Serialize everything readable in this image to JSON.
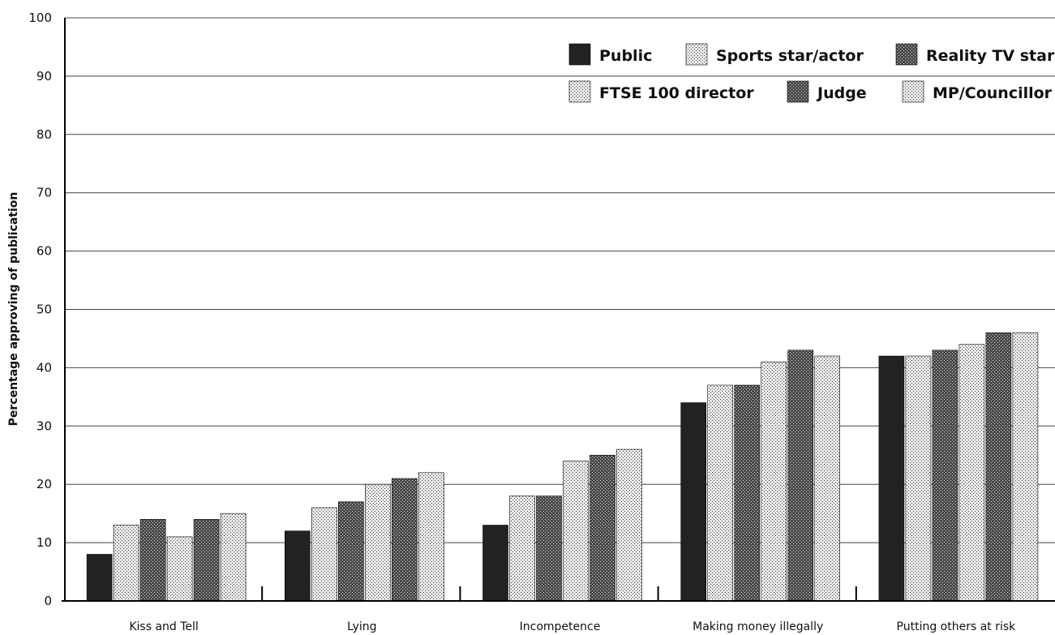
{
  "chart_data": {
    "type": "bar",
    "ylabel": "Percentage approving of publication",
    "xlabel": "",
    "ylim": [
      0,
      100
    ],
    "yticks": [
      0,
      10,
      20,
      30,
      40,
      50,
      60,
      70,
      80,
      90,
      100
    ],
    "grid": true,
    "legend_position": "top-right",
    "categories": [
      "Kiss and Tell",
      "Lying",
      "Incompetence",
      "Making money illegally",
      "Putting others at risk"
    ],
    "series": [
      {
        "name": "Public",
        "values": [
          8,
          12,
          13,
          34,
          42
        ],
        "fill": "solid-dark"
      },
      {
        "name": "Sports star/actor",
        "values": [
          13,
          16,
          18,
          37,
          42
        ],
        "fill": "light-hatch"
      },
      {
        "name": "Reality TV star",
        "values": [
          14,
          17,
          18,
          37,
          43
        ],
        "fill": "dark-hatch"
      },
      {
        "name": "FTSE 100 director",
        "values": [
          11,
          20,
          24,
          41,
          44
        ],
        "fill": "light-hatch"
      },
      {
        "name": "Judge",
        "values": [
          14,
          21,
          25,
          43,
          46
        ],
        "fill": "dark-hatch"
      },
      {
        "name": "MP/Councillor",
        "values": [
          15,
          22,
          26,
          42,
          46
        ],
        "fill": "light-hatch"
      }
    ]
  }
}
